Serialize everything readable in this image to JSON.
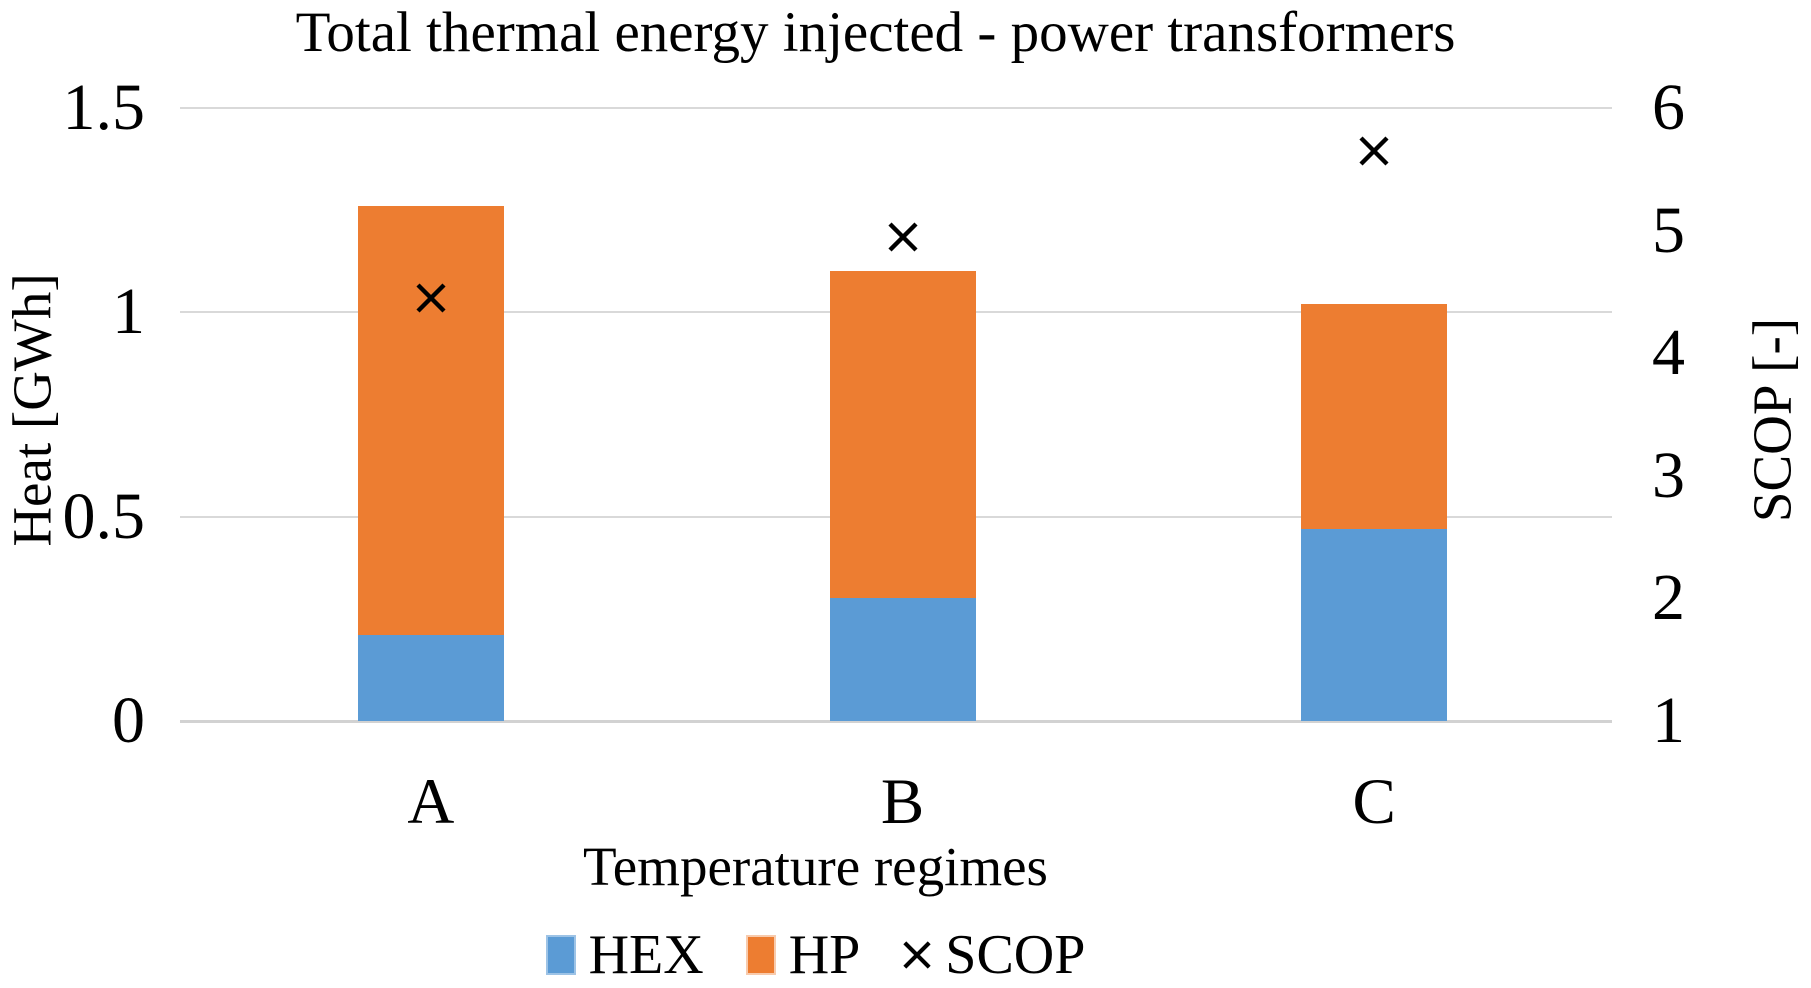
{
  "figure_title": "Total thermal energy injected - power transformers",
  "chart_data": {
    "type": "bar",
    "subtype": "stacked-bars-with-x-scatter-combo",
    "title": "Total thermal energy injected - power transformers",
    "categories": [
      "A",
      "B",
      "C"
    ],
    "series": [
      {
        "name": "HEX",
        "type": "bar",
        "stack": "heat",
        "axis": "left",
        "color": "#5B9BD5",
        "values": [
          0.21,
          0.3,
          0.47
        ]
      },
      {
        "name": "HP",
        "type": "bar",
        "stack": "heat",
        "axis": "left",
        "color": "#ED7D31",
        "values": [
          1.05,
          0.8,
          0.55
        ]
      },
      {
        "name": "SCOP",
        "type": "scatter",
        "marker": "x",
        "axis": "right",
        "color": "#000000",
        "values": [
          4.45,
          4.95,
          5.65
        ]
      }
    ],
    "stack_totals": [
      1.26,
      1.1,
      1.02
    ],
    "xlabel": "Temperature regimes",
    "ylabel_left": "Heat [GWh]",
    "ylabel_right": "SCOP [-]",
    "ylim_left": [
      0,
      1.5
    ],
    "ylim_right": [
      1,
      6
    ],
    "yticks_left": [
      {
        "value": 0,
        "label": "0"
      },
      {
        "value": 0.5,
        "label": "0.5"
      },
      {
        "value": 1,
        "label": "1"
      },
      {
        "value": 1.5,
        "label": "1.5"
      }
    ],
    "yticks_right": [
      {
        "value": 1,
        "label": "1"
      },
      {
        "value": 2,
        "label": "2"
      },
      {
        "value": 3,
        "label": "3"
      },
      {
        "value": 4,
        "label": "4"
      },
      {
        "value": 5,
        "label": "5"
      },
      {
        "value": 6,
        "label": "6"
      }
    ],
    "grid": true,
    "legend_position": "bottom",
    "legend": [
      {
        "label": "HEX",
        "marker": "square",
        "color": "#5B9BD5",
        "border": "#9DC3E6"
      },
      {
        "label": "HP",
        "marker": "square",
        "color": "#ED7D31",
        "border": "#F8CBAD"
      },
      {
        "label": "SCOP",
        "marker": "x",
        "color": "#000000"
      }
    ]
  },
  "colors": {
    "hex_series": "#5B9BD5",
    "hp_series": "#ED7D31",
    "scop_marker": "#000000",
    "gridline": "#D9D9D9",
    "text": "#000000",
    "background": "#FFFFFF"
  }
}
